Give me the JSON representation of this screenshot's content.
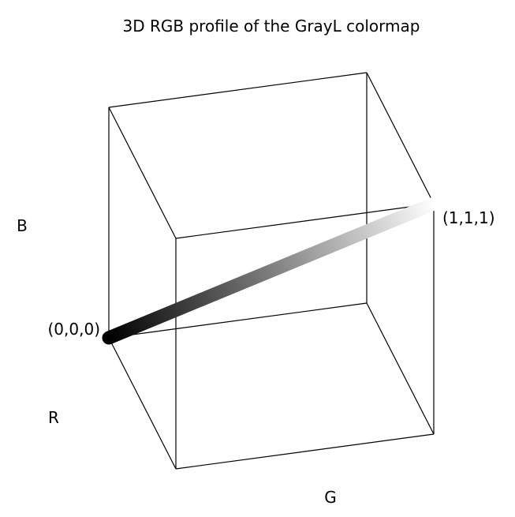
{
  "chart_data": {
    "type": "line",
    "title": "3D RGB profile of the GrayL colormap",
    "axes": {
      "x_label": "R",
      "y_label": "G",
      "z_label": "B",
      "x_range": [
        0,
        1
      ],
      "y_range": [
        0,
        1
      ],
      "z_range": [
        0,
        1
      ],
      "grid": false
    },
    "annotations": {
      "start": "(0,0,0)",
      "end": "(1,1,1)"
    },
    "colors": {
      "start": "#000000",
      "end": "#ffffff",
      "cube_edges": "#000000"
    },
    "series": [
      {
        "points": [
          [
            0,
            0,
            0
          ],
          [
            0.1,
            0.1,
            0.1
          ],
          [
            0.2,
            0.2,
            0.2
          ],
          [
            0.3,
            0.3,
            0.3
          ],
          [
            0.4,
            0.4,
            0.4
          ],
          [
            0.5,
            0.5,
            0.5
          ],
          [
            0.6,
            0.6,
            0.6
          ],
          [
            0.7,
            0.7,
            0.7
          ],
          [
            0.8,
            0.8,
            0.8
          ],
          [
            0.9,
            0.9,
            0.9
          ],
          [
            1,
            1,
            1
          ]
        ]
      }
    ]
  }
}
